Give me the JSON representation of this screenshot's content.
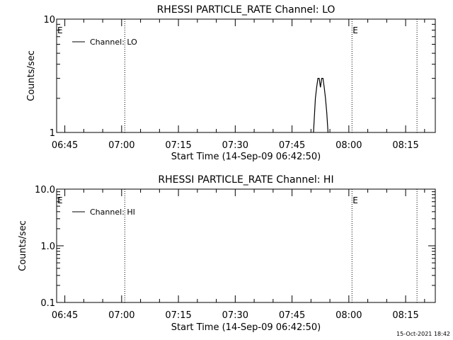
{
  "footer_timestamp": "15-Oct-2021 18:42",
  "chart_data": [
    {
      "type": "line",
      "title": "RHESSI PARTICLE_RATE Channel: LO",
      "xlabel": "Start Time (14-Sep-09 06:42:50)",
      "ylabel": "Counts/sec",
      "y_scale": "log",
      "ylim": [
        1,
        10
      ],
      "y_ticks": [
        {
          "value": 1,
          "label": "1"
        },
        {
          "value": 10,
          "label": "10"
        }
      ],
      "xlim": [
        "06:42:50",
        "08:22:50"
      ],
      "x_ticks": [
        "06:45",
        "07:00",
        "07:15",
        "07:30",
        "07:45",
        "08:00",
        "08:15"
      ],
      "legend": {
        "entries": [
          "Channel: LO"
        ],
        "position": "top-left"
      },
      "markers": [
        {
          "time": "06:42:50",
          "label": "E",
          "dotted_line": false
        },
        {
          "time": "07:00:50",
          "label": "",
          "dotted_line": true
        },
        {
          "time": "08:00:50",
          "label": "E",
          "dotted_line": true
        },
        {
          "time": "08:18:00",
          "label": "",
          "dotted_line": true
        }
      ],
      "series": [
        {
          "name": "Channel: LO",
          "x": [
            "07:50:40",
            "07:51:10",
            "07:51:30",
            "07:51:50",
            "07:52:10",
            "07:52:30",
            "07:52:50",
            "07:53:10",
            "07:53:30",
            "07:53:50",
            "07:54:10",
            "07:54:30"
          ],
          "values": [
            1,
            2,
            2.5,
            3,
            3,
            2.5,
            3,
            3,
            2.5,
            2,
            1.5,
            1
          ]
        }
      ]
    },
    {
      "type": "line",
      "title": "RHESSI PARTICLE_RATE Channel: HI",
      "xlabel": "Start Time (14-Sep-09 06:42:50)",
      "ylabel": "Counts/sec",
      "y_scale": "log",
      "ylim": [
        0.1,
        10
      ],
      "y_ticks": [
        {
          "value": 0.1,
          "label": "0.1"
        },
        {
          "value": 1,
          "label": "1.0"
        },
        {
          "value": 10,
          "label": "10.0"
        }
      ],
      "xlim": [
        "06:42:50",
        "08:22:50"
      ],
      "x_ticks": [
        "06:45",
        "07:00",
        "07:15",
        "07:30",
        "07:45",
        "08:00",
        "08:15"
      ],
      "legend": {
        "entries": [
          "Channel: HI"
        ],
        "position": "top-left"
      },
      "markers": [
        {
          "time": "06:42:50",
          "label": "E",
          "dotted_line": false
        },
        {
          "time": "07:00:50",
          "label": "",
          "dotted_line": true
        },
        {
          "time": "08:00:50",
          "label": "E",
          "dotted_line": true
        },
        {
          "time": "08:18:00",
          "label": "",
          "dotted_line": true
        }
      ],
      "series": [
        {
          "name": "Channel: HI",
          "x": [],
          "values": []
        }
      ]
    }
  ]
}
